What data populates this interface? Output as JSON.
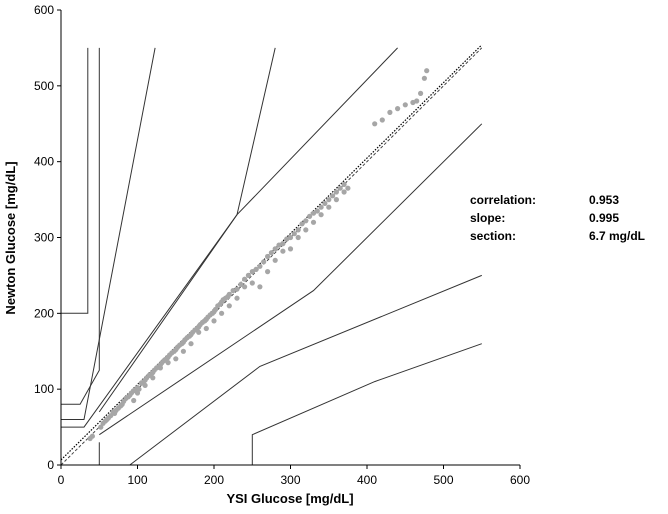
{
  "chart_data": {
    "type": "scatter",
    "title": "",
    "xlabel": "YSI Glucose [mg/dL]",
    "ylabel": "Newton Glucose [mg/dL]",
    "xlim": [
      0,
      600
    ],
    "ylim": [
      0,
      600
    ],
    "xticks": [
      "0",
      "100",
      "200",
      "300",
      "400",
      "500",
      "600"
    ],
    "yticks": [
      "0",
      "100",
      "200",
      "300",
      "400",
      "500",
      "600"
    ],
    "grid": false,
    "zone_lines": [
      {
        "name": "upper-e",
        "points": [
          [
            0,
            200
          ],
          [
            35,
            200
          ],
          [
            35,
            550
          ]
        ]
      },
      {
        "name": "upper-d",
        "points": [
          [
            0,
            80
          ],
          [
            25,
            80
          ],
          [
            50,
            125
          ],
          [
            50,
            550
          ]
        ]
      },
      {
        "name": "upper-c",
        "points": [
          [
            0,
            60
          ],
          [
            30,
            60
          ],
          [
            123,
            550
          ]
        ]
      },
      {
        "name": "upper-b",
        "points": [
          [
            0,
            50
          ],
          [
            30,
            50
          ],
          [
            230,
            330
          ],
          [
            280,
            550
          ]
        ]
      },
      {
        "name": "upper-a",
        "points": [
          [
            50,
            70
          ],
          [
            230,
            330
          ],
          [
            440,
            550
          ]
        ]
      },
      {
        "name": "lower-a",
        "points": [
          [
            50,
            40
          ],
          [
            330,
            230
          ],
          [
            550,
            450
          ]
        ]
      },
      {
        "name": "lower-b",
        "points": [
          [
            90,
            0
          ],
          [
            260,
            130
          ],
          [
            550,
            250
          ]
        ]
      },
      {
        "name": "lower-c",
        "points": [
          [
            50,
            0
          ],
          [
            50,
            30
          ]
        ]
      },
      {
        "name": "lower-d",
        "points": [
          [
            250,
            0
          ],
          [
            250,
            40
          ],
          [
            410,
            110
          ],
          [
            550,
            160
          ]
        ]
      }
    ],
    "identity_line": {
      "name": "identity",
      "points": [
        [
          0,
          0
        ],
        [
          550,
          550
        ]
      ]
    },
    "regression_line": {
      "name": "regression",
      "points": [
        [
          0,
          6.7
        ],
        [
          550,
          554
        ]
      ]
    },
    "series": [
      {
        "name": "measurements",
        "points": [
          [
            38,
            35
          ],
          [
            41,
            38
          ],
          [
            52,
            50
          ],
          [
            55,
            55
          ],
          [
            58,
            58
          ],
          [
            60,
            60
          ],
          [
            62,
            62
          ],
          [
            65,
            65
          ],
          [
            68,
            70
          ],
          [
            70,
            68
          ],
          [
            72,
            72
          ],
          [
            75,
            75
          ],
          [
            78,
            78
          ],
          [
            80,
            80
          ],
          [
            82,
            84
          ],
          [
            85,
            88
          ],
          [
            88,
            90
          ],
          [
            90,
            92
          ],
          [
            92,
            95
          ],
          [
            95,
            98
          ],
          [
            98,
            100
          ],
          [
            100,
            102
          ],
          [
            102,
            100
          ],
          [
            105,
            108
          ],
          [
            108,
            110
          ],
          [
            110,
            112
          ],
          [
            112,
            115
          ],
          [
            115,
            118
          ],
          [
            118,
            120
          ],
          [
            120,
            122
          ],
          [
            122,
            125
          ],
          [
            125,
            128
          ],
          [
            128,
            130
          ],
          [
            130,
            132
          ],
          [
            132,
            135
          ],
          [
            135,
            138
          ],
          [
            138,
            140
          ],
          [
            140,
            142
          ],
          [
            142,
            145
          ],
          [
            145,
            148
          ],
          [
            148,
            150
          ],
          [
            150,
            152
          ],
          [
            152,
            155
          ],
          [
            155,
            158
          ],
          [
            158,
            160
          ],
          [
            160,
            162
          ],
          [
            162,
            165
          ],
          [
            165,
            168
          ],
          [
            168,
            170
          ],
          [
            170,
            172
          ],
          [
            172,
            175
          ],
          [
            175,
            178
          ],
          [
            178,
            180
          ],
          [
            180,
            182
          ],
          [
            182,
            185
          ],
          [
            185,
            188
          ],
          [
            188,
            190
          ],
          [
            190,
            192
          ],
          [
            192,
            195
          ],
          [
            195,
            198
          ],
          [
            198,
            200
          ],
          [
            200,
            202
          ],
          [
            202,
            205
          ],
          [
            205,
            210
          ],
          [
            208,
            212
          ],
          [
            210,
            215
          ],
          [
            212,
            218
          ],
          [
            215,
            220
          ],
          [
            218,
            222
          ],
          [
            220,
            225
          ],
          [
            225,
            230
          ],
          [
            230,
            232
          ],
          [
            235,
            238
          ],
          [
            240,
            245
          ],
          [
            245,
            250
          ],
          [
            250,
            255
          ],
          [
            255,
            258
          ],
          [
            260,
            262
          ],
          [
            265,
            268
          ],
          [
            270,
            275
          ],
          [
            275,
            280
          ],
          [
            280,
            285
          ],
          [
            285,
            290
          ],
          [
            290,
            292
          ],
          [
            295,
            298
          ],
          [
            300,
            300
          ],
          [
            305,
            305
          ],
          [
            310,
            310
          ],
          [
            315,
            318
          ],
          [
            320,
            322
          ],
          [
            325,
            328
          ],
          [
            330,
            332
          ],
          [
            335,
            335
          ],
          [
            340,
            340
          ],
          [
            345,
            345
          ],
          [
            350,
            350
          ],
          [
            355,
            355
          ],
          [
            360,
            360
          ],
          [
            365,
            365
          ],
          [
            370,
            370
          ],
          [
            95,
            85
          ],
          [
            100,
            95
          ],
          [
            110,
            105
          ],
          [
            120,
            115
          ],
          [
            130,
            128
          ],
          [
            140,
            135
          ],
          [
            150,
            140
          ],
          [
            160,
            150
          ],
          [
            170,
            160
          ],
          [
            180,
            175
          ],
          [
            190,
            180
          ],
          [
            200,
            190
          ],
          [
            210,
            200
          ],
          [
            220,
            210
          ],
          [
            230,
            220
          ],
          [
            240,
            235
          ],
          [
            250,
            240
          ],
          [
            260,
            235
          ],
          [
            270,
            255
          ],
          [
            280,
            270
          ],
          [
            290,
            282
          ],
          [
            300,
            285
          ],
          [
            310,
            300
          ],
          [
            320,
            310
          ],
          [
            330,
            320
          ],
          [
            340,
            330
          ],
          [
            350,
            340
          ],
          [
            360,
            350
          ],
          [
            370,
            360
          ],
          [
            375,
            365
          ],
          [
            410,
            450
          ],
          [
            420,
            455
          ],
          [
            430,
            465
          ],
          [
            440,
            470
          ],
          [
            450,
            475
          ],
          [
            460,
            478
          ],
          [
            465,
            480
          ],
          [
            470,
            490
          ],
          [
            475,
            510
          ],
          [
            478,
            520
          ]
        ]
      }
    ],
    "annotations": [
      {
        "label": "correlation:",
        "value": "0.953"
      },
      {
        "label": "slope:",
        "value": "0.995"
      },
      {
        "label": "section:",
        "value": "6.7 mg/dL"
      }
    ]
  }
}
